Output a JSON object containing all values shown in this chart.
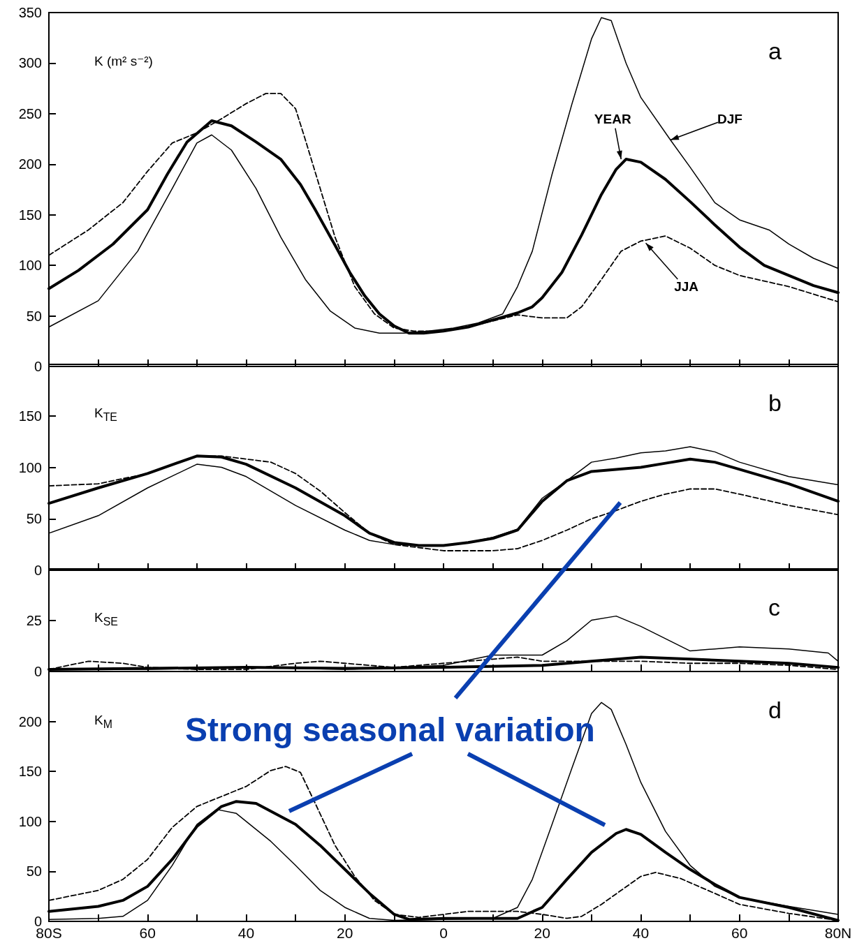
{
  "chart_data": [
    {
      "type": "line",
      "title": "a",
      "ylabel": "K  (m² s⁻²)",
      "xlim": [
        -80,
        80
      ],
      "ylim": [
        0,
        350
      ],
      "yticks": [
        0,
        50,
        100,
        150,
        200,
        250,
        300,
        350
      ],
      "tick_labels": "y",
      "grid": false,
      "marker": "none",
      "xticks": [
        -80,
        -70,
        -60,
        -50,
        -40,
        -30,
        -20,
        -10,
        0,
        10,
        20,
        30,
        40,
        50,
        60,
        70,
        80
      ],
      "annotations": [
        {
          "text": "YEAR",
          "x": 36,
          "y": 205
        },
        {
          "text": "DJF",
          "x": 46,
          "y": 224
        },
        {
          "text": "JJA",
          "x": 41,
          "y": 122
        }
      ],
      "series": [
        {
          "color": "#000000",
          "line_style": "solid",
          "x": [
            -80,
            -74,
            -67,
            -60,
            -56,
            -52,
            -47,
            -43,
            -38,
            -33,
            -29,
            -26,
            -22,
            -19,
            -16,
            -13,
            -10,
            -7,
            -4,
            0,
            5,
            10,
            15,
            18,
            20,
            24,
            28,
            32,
            35,
            37,
            40,
            45,
            50,
            55,
            60,
            65,
            70,
            75,
            80
          ],
          "values": [
            77,
            95,
            121,
            155,
            190,
            222,
            243,
            238,
            222,
            205,
            180,
            155,
            120,
            93,
            70,
            52,
            40,
            33,
            33,
            35,
            39,
            46,
            53,
            59,
            68,
            93,
            130,
            170,
            195,
            205,
            202,
            185,
            163,
            140,
            118,
            100,
            90,
            80,
            73
          ]
        },
        {
          "color": "#000000",
          "line_style": "solid",
          "x": [
            -80,
            -70,
            -62,
            -55,
            -50,
            -47,
            -43,
            -38,
            -33,
            -28,
            -23,
            -18,
            -13,
            -8,
            -3,
            2,
            7,
            12,
            15,
            18,
            22,
            26,
            30,
            32,
            34,
            37,
            40,
            46,
            50,
            55,
            60,
            66,
            70,
            75,
            80
          ],
          "values": [
            39,
            65,
            114,
            176,
            221,
            229,
            214,
            176,
            128,
            86,
            55,
            38,
            33,
            33,
            35,
            38,
            43,
            52,
            79,
            114,
            190,
            259,
            324,
            345,
            342,
            300,
            266,
            224,
            197,
            162,
            145,
            135,
            121,
            107,
            97
          ]
        },
        {
          "color": "#000000",
          "line_style": "dashed",
          "x": [
            -80,
            -72,
            -65,
            -60,
            -55,
            -50,
            -45,
            -40,
            -36,
            -33,
            -30,
            -28,
            -25,
            -22,
            -18,
            -14,
            -10,
            -6,
            0,
            5,
            10,
            15,
            20,
            25,
            28,
            32,
            36,
            40,
            45,
            50,
            55,
            60,
            70,
            80
          ],
          "values": [
            110,
            135,
            162,
            193,
            221,
            231,
            245,
            260,
            270,
            270,
            255,
            224,
            176,
            128,
            79,
            52,
            38,
            35,
            35,
            39,
            45,
            51,
            48,
            48,
            59,
            86,
            114,
            124,
            129,
            117,
            100,
            90,
            79,
            64
          ]
        }
      ]
    },
    {
      "type": "line",
      "title": "b",
      "ylabel": "K$_{TE}$",
      "xlim": [
        -80,
        80
      ],
      "ylim": [
        0,
        200
      ],
      "yticks": [
        0,
        50,
        100,
        150
      ],
      "tick_labels": "y",
      "grid": false,
      "marker": "none",
      "xticks": [
        -80,
        -70,
        -60,
        -50,
        -40,
        -30,
        -20,
        -10,
        0,
        10,
        20,
        30,
        40,
        50,
        60,
        70,
        80
      ],
      "series": [
        {
          "color": "#000000",
          "line_style": "solid",
          "x": [
            -80,
            -70,
            -60,
            -50,
            -45,
            -40,
            -30,
            -20,
            -15,
            -10,
            -5,
            0,
            5,
            10,
            15,
            20,
            25,
            30,
            35,
            40,
            45,
            50,
            55,
            60,
            70,
            80
          ],
          "values": [
            65,
            80,
            94,
            111,
            110,
            103,
            80,
            53,
            36,
            27,
            24,
            24,
            27,
            31,
            39,
            67,
            87,
            96,
            98,
            100,
            104,
            108,
            105,
            98,
            84,
            67
          ]
        },
        {
          "color": "#000000",
          "line_style": "solid",
          "x": [
            -80,
            -70,
            -60,
            -50,
            -45,
            -40,
            -30,
            -20,
            -15,
            -10,
            -5,
            0,
            5,
            10,
            15,
            20,
            25,
            30,
            35,
            40,
            45,
            50,
            55,
            60,
            70,
            80
          ],
          "values": [
            36,
            53,
            80,
            103,
            100,
            91,
            63,
            39,
            29,
            25,
            24,
            24,
            27,
            32,
            40,
            70,
            87,
            105,
            109,
            114,
            116,
            120,
            115,
            105,
            91,
            83
          ]
        },
        {
          "color": "#000000",
          "line_style": "dashed",
          "x": [
            -80,
            -70,
            -60,
            -50,
            -45,
            -40,
            -35,
            -30,
            -25,
            -20,
            -15,
            -10,
            -5,
            0,
            10,
            15,
            20,
            25,
            30,
            35,
            40,
            45,
            50,
            55,
            60,
            70,
            80
          ],
          "values": [
            82,
            84,
            94,
            111,
            111,
            108,
            105,
            94,
            77,
            56,
            36,
            25,
            22,
            19,
            19,
            21,
            29,
            39,
            50,
            58,
            67,
            74,
            79,
            79,
            74,
            63,
            54
          ]
        }
      ]
    },
    {
      "type": "line",
      "title": "c",
      "ylabel": "K$_{SE}$",
      "xlim": [
        -80,
        80
      ],
      "ylim": [
        0,
        50
      ],
      "yticks": [
        0,
        25
      ],
      "tick_labels": "y",
      "grid": false,
      "marker": "none",
      "xticks": [
        -80,
        -70,
        -60,
        -50,
        -40,
        -30,
        -20,
        -10,
        0,
        10,
        20,
        30,
        40,
        50,
        60,
        70,
        80
      ],
      "series": [
        {
          "color": "#000000",
          "line_style": "solid",
          "x": [
            -80,
            -60,
            -40,
            -20,
            0,
            20,
            30,
            40,
            50,
            60,
            70,
            80
          ],
          "values": [
            1,
            1.5,
            2,
            1.5,
            2,
            3,
            5,
            7,
            6,
            5,
            4,
            2
          ]
        },
        {
          "color": "#000000",
          "line_style": "solid",
          "x": [
            -80,
            -60,
            -40,
            -20,
            0,
            10,
            20,
            25,
            30,
            35,
            40,
            50,
            55,
            60,
            70,
            78,
            80
          ],
          "values": [
            1,
            1,
            2,
            1,
            3,
            8,
            8,
            15,
            25,
            27,
            22,
            10,
            11,
            12,
            11,
            9,
            5
          ]
        },
        {
          "color": "#000000",
          "line_style": "dashed",
          "x": [
            -80,
            -72,
            -65,
            -60,
            -50,
            -40,
            -30,
            -25,
            -20,
            -10,
            0,
            10,
            15,
            20,
            30,
            40,
            50,
            60,
            70,
            80
          ],
          "values": [
            1,
            5,
            4,
            2,
            1,
            1,
            4,
            5,
            4,
            2,
            4,
            6,
            7,
            5,
            5,
            5,
            4,
            4,
            3,
            1
          ]
        }
      ]
    },
    {
      "type": "line",
      "title": "d",
      "ylabel": "K$_{M}$",
      "xlim": [
        -80,
        80
      ],
      "ylim": [
        0,
        250
      ],
      "yticks": [
        0,
        50,
        100,
        150,
        200
      ],
      "grid": false,
      "marker": "none",
      "xticks": [
        {
          "value": -80,
          "label": "80S"
        },
        {
          "value": -70,
          "label": null
        },
        {
          "value": -60,
          "label": "60"
        },
        {
          "value": -50,
          "label": null
        },
        {
          "value": -40,
          "label": "40"
        },
        {
          "value": -30,
          "label": null
        },
        {
          "value": -20,
          "label": "20"
        },
        {
          "value": -10,
          "label": null
        },
        0,
        {
          "value": 10,
          "label": null
        },
        20,
        {
          "value": 30,
          "label": null
        },
        40,
        {
          "value": 50,
          "label": null
        },
        60,
        {
          "value": 70,
          "label": null
        },
        {
          "value": 80,
          "label": "80N"
        }
      ],
      "annotations": [
        "Strong seasonal variation"
      ],
      "series": [
        {
          "color": "#000000",
          "line_style": "solid",
          "x": [
            -80,
            -70,
            -65,
            -60,
            -55,
            -50,
            -45,
            -42,
            -38,
            -30,
            -25,
            -20,
            -15,
            -10,
            -7,
            0,
            10,
            15,
            20,
            25,
            30,
            35,
            37,
            40,
            45,
            50,
            55,
            60,
            70,
            80
          ],
          "values": [
            10,
            15,
            21,
            35,
            62,
            95,
            115,
            120,
            118,
            97,
            76,
            52,
            28,
            7,
            2,
            3,
            3,
            3,
            14,
            42,
            69,
            88,
            92,
            87,
            69,
            52,
            37,
            24,
            14,
            1
          ]
        },
        {
          "color": "#000000",
          "line_style": "solid",
          "x": [
            -80,
            -70,
            -65,
            -60,
            -55,
            -50,
            -46,
            -42,
            -35,
            -30,
            -25,
            -20,
            -15,
            -10,
            0,
            10,
            15,
            18,
            22,
            26,
            30,
            32,
            34,
            37,
            40,
            45,
            50,
            55,
            60,
            70,
            80
          ],
          "values": [
            2,
            3,
            5,
            21,
            56,
            97,
            112,
            108,
            80,
            56,
            31,
            14,
            3,
            1,
            2,
            3,
            14,
            42,
            97,
            153,
            208,
            219,
            212,
            177,
            139,
            90,
            56,
            35,
            24,
            15,
            7
          ]
        },
        {
          "color": "#000000",
          "line_style": "dashed",
          "x": [
            -80,
            -70,
            -65,
            -60,
            -55,
            -50,
            -45,
            -40,
            -35,
            -32,
            -29,
            -26,
            -22,
            -18,
            -14,
            -10,
            -5,
            0,
            5,
            10,
            15,
            20,
            25,
            28,
            32,
            36,
            40,
            43,
            48,
            55,
            60,
            70,
            80
          ],
          "values": [
            21,
            31,
            42,
            62,
            94,
            115,
            125,
            135,
            151,
            155,
            149,
            118,
            76,
            45,
            21,
            7,
            4,
            7,
            10,
            10,
            10,
            7,
            3,
            5,
            17,
            31,
            45,
            49,
            43,
            28,
            17,
            8,
            1
          ]
        }
      ]
    }
  ]
}
